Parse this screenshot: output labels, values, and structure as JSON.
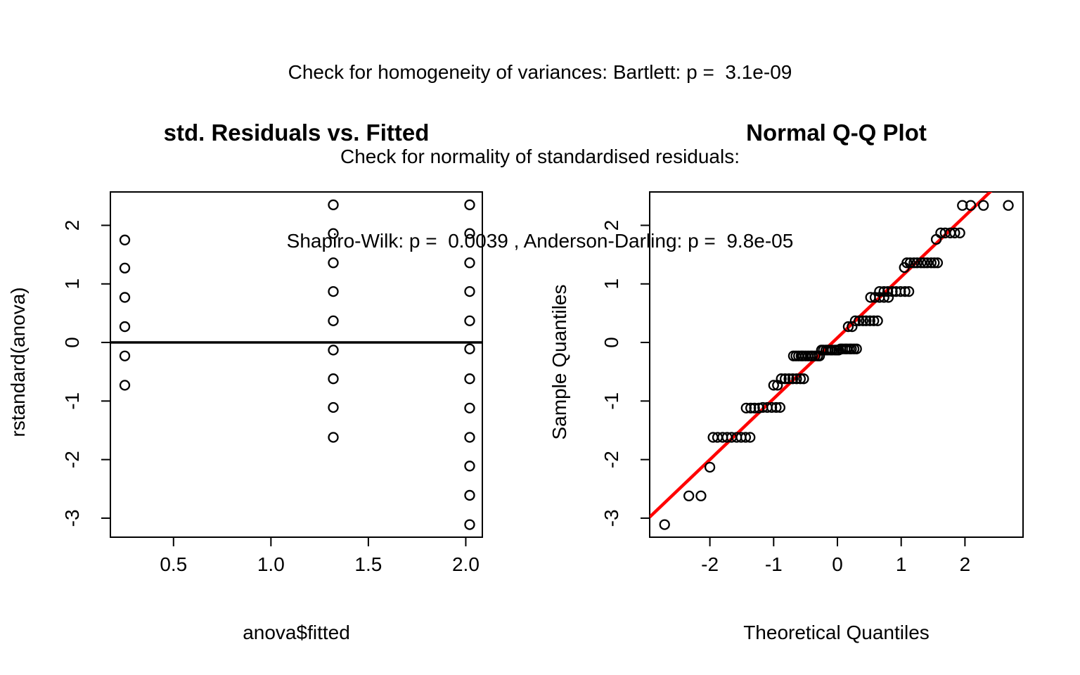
{
  "header": {
    "line1": "Check for homogeneity of variances: Bartlett: p =  3.1e-09",
    "line2": "Check for normality of standardised residuals:",
    "line3": "Shapiro-Wilk: p =  0.0039 , Anderson-Darling: p =  9.8e-05"
  },
  "colors": {
    "reference_line_red": "#FF0000",
    "point_stroke": "#000000",
    "background": "#FFFFFF"
  },
  "chart_data": [
    {
      "type": "scatter",
      "title": "std. Residuals vs. Fitted",
      "xlabel": "anova$fitted",
      "ylabel": "rstandard(anova)",
      "xlim": [
        0.176,
        2.085
      ],
      "ylim": [
        -3.325,
        2.57
      ],
      "xticks": {
        "values": [
          0.5,
          1.0,
          1.5,
          2.0
        ],
        "labels": [
          "0.5",
          "1.0",
          "1.5",
          "2.0"
        ]
      },
      "yticks": {
        "values": [
          2,
          1,
          0,
          -1,
          -2,
          -3
        ],
        "labels": [
          "2",
          "1",
          "0",
          "-1",
          "-2",
          "-3"
        ]
      },
      "hline": 0,
      "grid": false,
      "legend": null,
      "points": [
        [
          0.25,
          1.75
        ],
        [
          0.25,
          1.27
        ],
        [
          0.25,
          0.77
        ],
        [
          0.25,
          0.27
        ],
        [
          0.25,
          -0.23
        ],
        [
          0.25,
          -0.73
        ],
        [
          1.32,
          2.35
        ],
        [
          1.32,
          1.86
        ],
        [
          1.32,
          1.36
        ],
        [
          1.32,
          0.87
        ],
        [
          1.32,
          0.37
        ],
        [
          1.32,
          -0.13
        ],
        [
          1.32,
          -0.62
        ],
        [
          1.32,
          -1.11
        ],
        [
          1.32,
          -1.62
        ],
        [
          2.02,
          2.35
        ],
        [
          2.02,
          1.86
        ],
        [
          2.02,
          1.36
        ],
        [
          2.02,
          0.87
        ],
        [
          2.02,
          0.37
        ],
        [
          2.02,
          -0.11
        ],
        [
          2.02,
          -0.62
        ],
        [
          2.02,
          -1.12
        ],
        [
          2.02,
          -1.62
        ],
        [
          2.02,
          -2.11
        ],
        [
          2.02,
          -2.61
        ],
        [
          2.02,
          -3.11
        ]
      ]
    },
    {
      "type": "scatter",
      "title": "Normal Q-Q Plot",
      "xlabel": "Theoretical Quantiles",
      "ylabel": "Sample Quantiles",
      "xlim": [
        -2.944,
        2.911
      ],
      "ylim": [
        -3.325,
        2.57
      ],
      "xticks": {
        "values": [
          -2,
          -1,
          0,
          1,
          2
        ],
        "labels": [
          "-2",
          "-1",
          "0",
          "1",
          "2"
        ]
      },
      "yticks": {
        "values": [
          2,
          1,
          0,
          -1,
          -2,
          -3
        ],
        "labels": [
          "2",
          "1",
          "0",
          "-1",
          "-2",
          "-3"
        ]
      },
      "grid": false,
      "legend": null,
      "line": {
        "intercept": 0.08,
        "slope": 1.04,
        "color": "#FF0000"
      },
      "points": [
        [
          -2.71,
          -3.11
        ],
        [
          -2.33,
          -2.62
        ],
        [
          -2.14,
          -2.62
        ],
        [
          -2.0,
          -2.13
        ],
        [
          -1.95,
          -1.62
        ],
        [
          -1.88,
          -1.62
        ],
        [
          -1.8,
          -1.62
        ],
        [
          -1.73,
          -1.62
        ],
        [
          -1.66,
          -1.62
        ],
        [
          -1.58,
          -1.62
        ],
        [
          -1.51,
          -1.62
        ],
        [
          -1.44,
          -1.62
        ],
        [
          -1.37,
          -1.62
        ],
        [
          -1.43,
          -1.12
        ],
        [
          -1.36,
          -1.12
        ],
        [
          -1.3,
          -1.12
        ],
        [
          -1.23,
          -1.12
        ],
        [
          -1.17,
          -1.11
        ],
        [
          -1.1,
          -1.11
        ],
        [
          -1.03,
          -1.11
        ],
        [
          -0.96,
          -1.11
        ],
        [
          -0.9,
          -1.11
        ],
        [
          -1.0,
          -0.73
        ],
        [
          -0.94,
          -0.73
        ],
        [
          -0.88,
          -0.62
        ],
        [
          -0.82,
          -0.62
        ],
        [
          -0.76,
          -0.62
        ],
        [
          -0.7,
          -0.62
        ],
        [
          -0.64,
          -0.62
        ],
        [
          -0.58,
          -0.62
        ],
        [
          -0.53,
          -0.62
        ],
        [
          -0.69,
          -0.23
        ],
        [
          -0.65,
          -0.23
        ],
        [
          -0.61,
          -0.23
        ],
        [
          -0.57,
          -0.23
        ],
        [
          -0.54,
          -0.23
        ],
        [
          -0.5,
          -0.23
        ],
        [
          -0.46,
          -0.23
        ],
        [
          -0.42,
          -0.23
        ],
        [
          -0.39,
          -0.23
        ],
        [
          -0.35,
          -0.23
        ],
        [
          -0.31,
          -0.23
        ],
        [
          -0.28,
          -0.23
        ],
        [
          -0.25,
          -0.13
        ],
        [
          -0.22,
          -0.13
        ],
        [
          -0.18,
          -0.13
        ],
        [
          -0.15,
          -0.13
        ],
        [
          -0.11,
          -0.13
        ],
        [
          -0.08,
          -0.13
        ],
        [
          -0.04,
          -0.13
        ],
        [
          -0.01,
          -0.13
        ],
        [
          0.02,
          -0.13
        ],
        [
          0.05,
          -0.11
        ],
        [
          0.08,
          -0.11
        ],
        [
          0.12,
          -0.11
        ],
        [
          0.15,
          -0.11
        ],
        [
          0.19,
          -0.11
        ],
        [
          0.22,
          -0.11
        ],
        [
          0.26,
          -0.11
        ],
        [
          0.3,
          -0.11
        ],
        [
          0.17,
          0.27
        ],
        [
          0.23,
          0.27
        ],
        [
          0.28,
          0.37
        ],
        [
          0.34,
          0.37
        ],
        [
          0.4,
          0.37
        ],
        [
          0.45,
          0.37
        ],
        [
          0.51,
          0.37
        ],
        [
          0.57,
          0.37
        ],
        [
          0.63,
          0.37
        ],
        [
          0.52,
          0.77
        ],
        [
          0.59,
          0.77
        ],
        [
          0.66,
          0.77
        ],
        [
          0.73,
          0.77
        ],
        [
          0.8,
          0.77
        ],
        [
          0.66,
          0.87
        ],
        [
          0.73,
          0.87
        ],
        [
          0.79,
          0.87
        ],
        [
          0.86,
          0.87
        ],
        [
          0.92,
          0.87
        ],
        [
          0.99,
          0.87
        ],
        [
          1.06,
          0.87
        ],
        [
          1.12,
          0.87
        ],
        [
          1.05,
          1.28
        ],
        [
          1.09,
          1.36
        ],
        [
          1.14,
          1.36
        ],
        [
          1.2,
          1.36
        ],
        [
          1.25,
          1.36
        ],
        [
          1.31,
          1.36
        ],
        [
          1.36,
          1.36
        ],
        [
          1.41,
          1.36
        ],
        [
          1.47,
          1.36
        ],
        [
          1.52,
          1.36
        ],
        [
          1.57,
          1.36
        ],
        [
          1.55,
          1.76
        ],
        [
          1.62,
          1.87
        ],
        [
          1.69,
          1.87
        ],
        [
          1.77,
          1.87
        ],
        [
          1.84,
          1.87
        ],
        [
          1.92,
          1.87
        ],
        [
          1.96,
          2.34
        ],
        [
          2.09,
          2.34
        ],
        [
          2.29,
          2.34
        ],
        [
          2.68,
          2.34
        ]
      ]
    }
  ]
}
